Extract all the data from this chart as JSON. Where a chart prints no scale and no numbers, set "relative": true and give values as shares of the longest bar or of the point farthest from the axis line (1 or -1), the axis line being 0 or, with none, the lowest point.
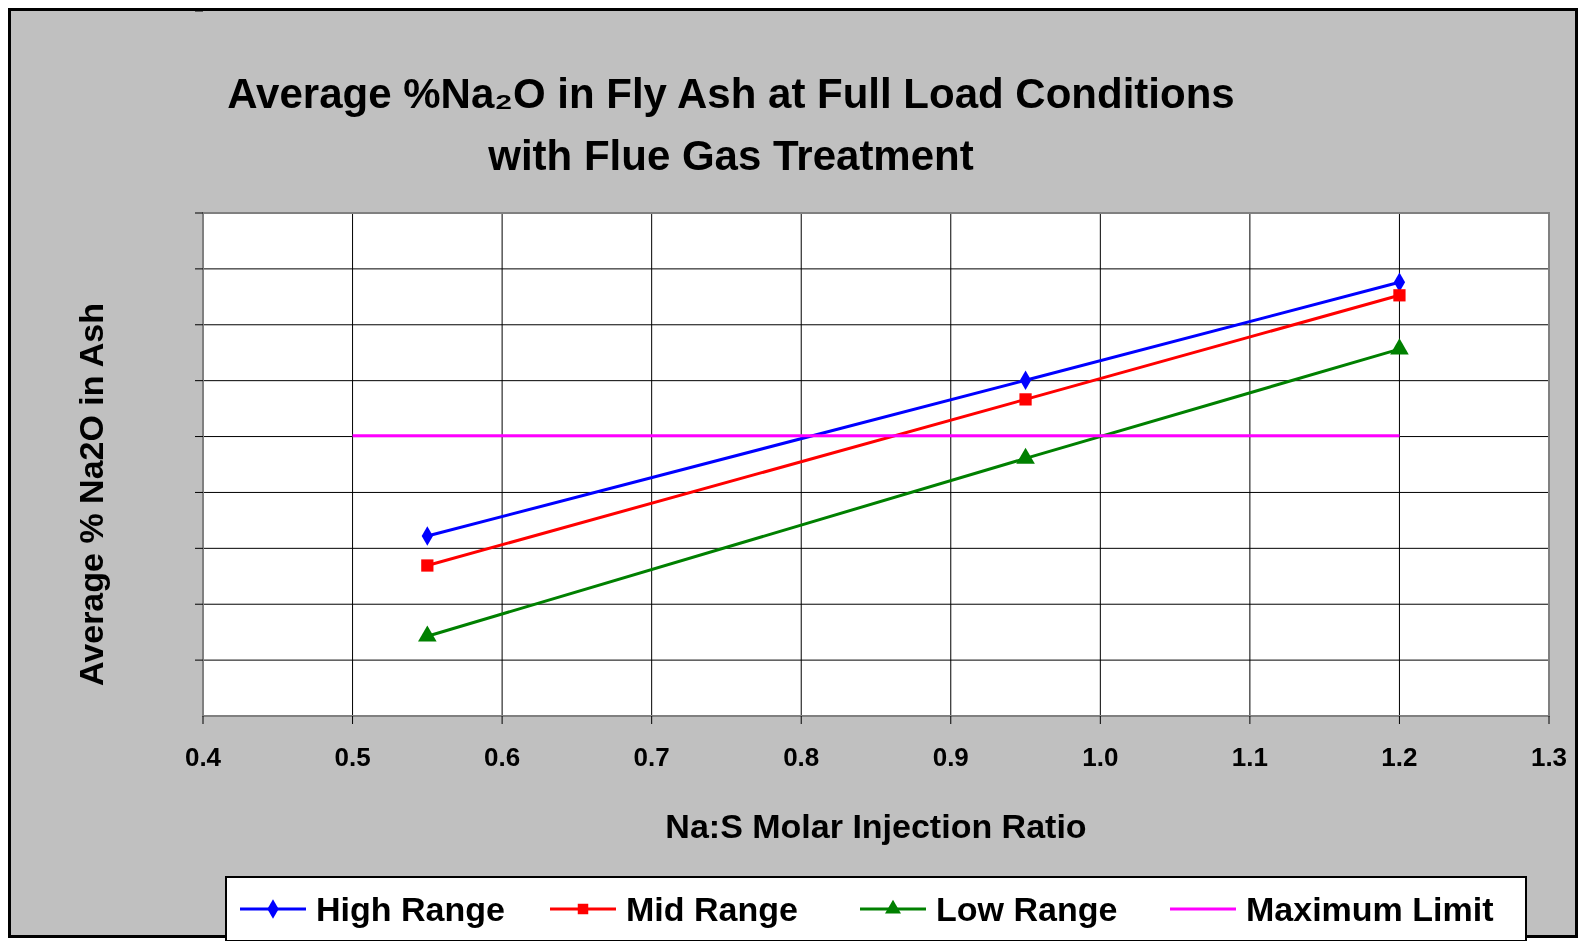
{
  "chart_data": {
    "type": "line",
    "title": "Average %Na₂O in Fly Ash at Full Load Conditions with Flue Gas Treatment",
    "xlabel": "Na:S Molar Injection Ratio",
    "ylabel": "Average % Na2O in Ash",
    "relative": true,
    "x": [
      0.55,
      0.95,
      1.2
    ],
    "xlim": [
      0.4,
      1.3
    ],
    "xticks": [
      0.4,
      0.5,
      0.6,
      0.7,
      0.8,
      0.9,
      {
        "value": 1,
        "label": "1.0"
      },
      1.1,
      1.2,
      1.3
    ],
    "grid": true,
    "legend": "bottom",
    "tick_labels": "x",
    "line_style": "solid",
    "series": [
      {
        "name": "High Range",
        "color": "#0000ff",
        "marker": "diamond",
        "values": [
          0.415,
          0.774,
          1
        ]
      },
      {
        "name": "Mid Range",
        "color": "#ff0000",
        "marker": "square",
        "values": [
          0.347,
          0.73,
          0.97
        ]
      },
      {
        "name": "Low Range",
        "color": "#008000",
        "marker": "triangle",
        "values": [
          0.184,
          0.594,
          0.846
        ]
      },
      {
        "name": "Maximum Limit",
        "color": "#ff00ff",
        "marker": "none",
        "x": [
          0.5,
          1.2
        ],
        "values": [
          0.646,
          0.646
        ]
      }
    ]
  }
}
